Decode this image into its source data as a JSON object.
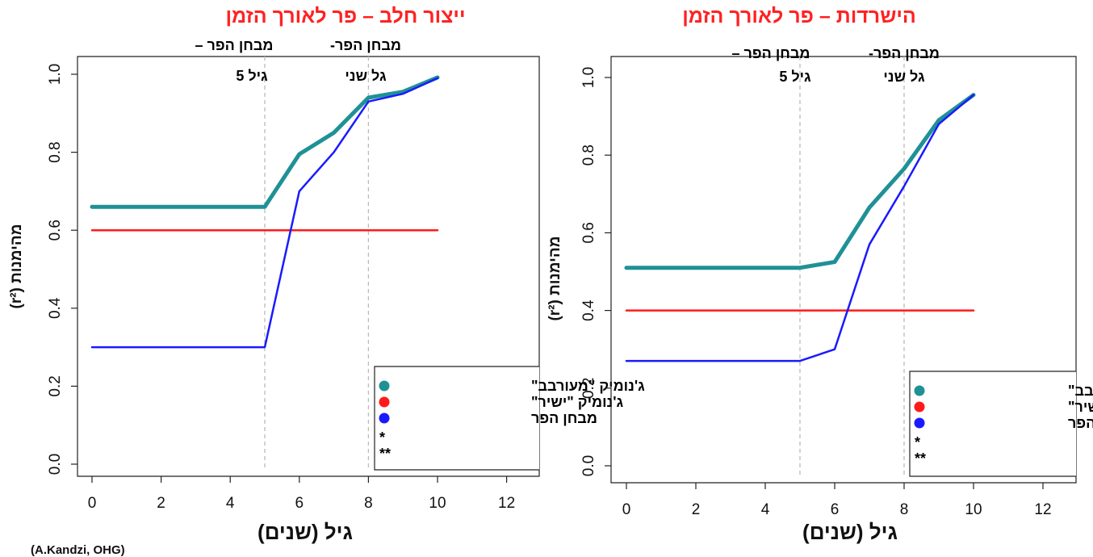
{
  "credit": "(A.Kandzi, OHG)",
  "chart_data": [
    {
      "type": "line",
      "title": "ייצור חלב – פר לאורך הזמן",
      "xlabel": "גיל (שנים)",
      "ylabel": "מהימנות (r²)",
      "xlim": [
        0,
        13
      ],
      "ylim": [
        0,
        1.03
      ],
      "xticks": [
        "0",
        "2",
        "4",
        "6",
        "8",
        "10",
        "12"
      ],
      "yticks": [
        "0.0",
        "0.2",
        "0.4",
        "0.6",
        "0.8",
        "1.0"
      ],
      "legend_position": "bottom-right",
      "vlines": [
        {
          "x": 5,
          "label_line1": "מבחן הפר –",
          "label_line2": "גיל 5"
        },
        {
          "x": 8,
          "label_line1": "מבחן הפר-",
          "label_line2": "גל שני"
        }
      ],
      "series": [
        {
          "name": "ג'נומיק \"מעורבב\"",
          "color": "#1f9196",
          "width": 5,
          "points": [
            [
              0,
              0.66
            ],
            [
              5,
              0.66
            ],
            [
              6,
              0.795
            ],
            [
              7,
              0.85
            ],
            [
              8,
              0.94
            ],
            [
              9,
              0.955
            ],
            [
              10,
              0.992
            ]
          ]
        },
        {
          "name": "ג'נומיק  \"ישיר\"",
          "color": "#ff1a1a",
          "width": 2.5,
          "points": [
            [
              0,
              0.6
            ],
            [
              10,
              0.6
            ]
          ]
        },
        {
          "name": "מבחן הפר",
          "color": "#1a1aff",
          "width": 2.5,
          "points": [
            [
              0,
              0.3
            ],
            [
              5,
              0.3
            ],
            [
              6,
              0.7
            ],
            [
              7,
              0.8
            ],
            [
              8,
              0.93
            ],
            [
              9,
              0.95
            ],
            [
              10,
              0.99
            ]
          ]
        }
      ],
      "legend_extra": [
        "*",
        "**"
      ]
    },
    {
      "type": "line",
      "title": "הישרדות – פר לאורך הזמן",
      "xlabel": "גיל (שנים)",
      "ylabel": "מהימנות (r²)",
      "xlim": [
        0,
        13
      ],
      "ylim": [
        0,
        1.03
      ],
      "xticks": [
        "0",
        "2",
        "4",
        "6",
        "8",
        "10",
        "12"
      ],
      "yticks": [
        "0.0",
        "0.2",
        "0.4",
        "0.6",
        "0.8",
        "1.0"
      ],
      "legend_position": "bottom-right",
      "vlines": [
        {
          "x": 5,
          "label_line1": "מבחן הפר –",
          "label_line2": "גיל 5"
        },
        {
          "x": 8,
          "label_line1": "מבחן הפר-",
          "label_line2": "גל שני"
        }
      ],
      "series": [
        {
          "name": "ג'נומיק \"מעורבב\"",
          "color": "#1f9196",
          "width": 5,
          "points": [
            [
              0,
              0.51
            ],
            [
              5,
              0.51
            ],
            [
              6,
              0.525
            ],
            [
              7,
              0.665
            ],
            [
              8,
              0.765
            ],
            [
              9,
              0.89
            ],
            [
              10,
              0.955
            ]
          ]
        },
        {
          "name": "ג'נומיק  \"ישיר\"",
          "color": "#ff1a1a",
          "width": 2.5,
          "points": [
            [
              0,
              0.4
            ],
            [
              10,
              0.4
            ]
          ]
        },
        {
          "name": "מבחן הפר",
          "color": "#1a1aff",
          "width": 2.5,
          "points": [
            [
              0,
              0.27
            ],
            [
              5,
              0.27
            ],
            [
              6,
              0.3
            ],
            [
              7,
              0.57
            ],
            [
              8,
              0.72
            ],
            [
              9,
              0.88
            ],
            [
              10,
              0.955
            ]
          ]
        }
      ],
      "legend_extra": [
        "*",
        "**"
      ]
    }
  ]
}
